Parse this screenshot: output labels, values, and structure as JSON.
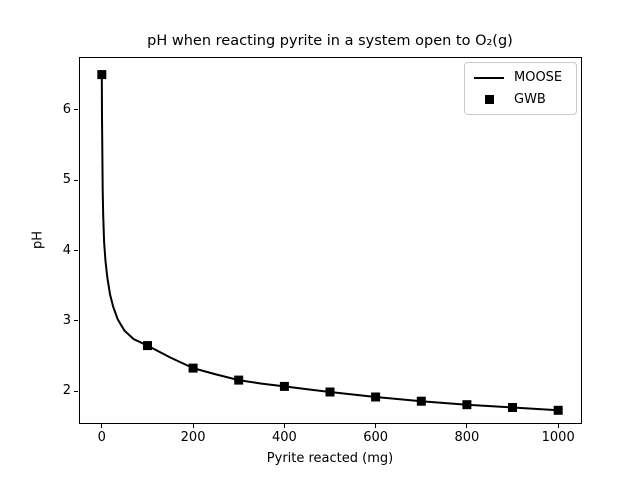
{
  "chart_data": {
    "type": "line",
    "title": "pH when reacting pyrite in a system open to O₂(g)",
    "xlabel": "Pyrite reacted (mg)",
    "ylabel": "pH",
    "xlim": [
      -50,
      1050
    ],
    "ylim": [
      1.55,
      6.75
    ],
    "xticks": [
      0,
      200,
      400,
      600,
      800,
      1000
    ],
    "yticks": [
      2,
      3,
      4,
      5,
      6
    ],
    "grid": false,
    "legend_position": "upper right",
    "line_color": "#000000",
    "marker_color": "#000000",
    "background_color": "#ffffff",
    "series": [
      {
        "name": "MOOSE",
        "style": "line",
        "x": [
          0,
          0.5,
          1,
          2,
          3,
          5,
          8,
          12,
          18,
          25,
          35,
          50,
          70,
          100,
          150,
          200,
          250,
          300,
          350,
          400,
          450,
          500,
          600,
          700,
          800,
          900,
          1000
        ],
        "y": [
          6.5,
          5.9,
          5.45,
          4.85,
          4.5,
          4.12,
          3.85,
          3.62,
          3.38,
          3.2,
          3.02,
          2.86,
          2.74,
          2.65,
          2.48,
          2.33,
          2.24,
          2.16,
          2.11,
          2.07,
          2.03,
          1.99,
          1.92,
          1.86,
          1.81,
          1.77,
          1.73
        ]
      },
      {
        "name": "GWB",
        "style": "scatter",
        "marker": "square",
        "x": [
          0,
          100,
          200,
          300,
          400,
          500,
          600,
          700,
          800,
          900,
          1000
        ],
        "y": [
          6.5,
          2.65,
          2.33,
          2.16,
          2.07,
          1.99,
          1.92,
          1.86,
          1.81,
          1.77,
          1.73
        ]
      }
    ]
  }
}
